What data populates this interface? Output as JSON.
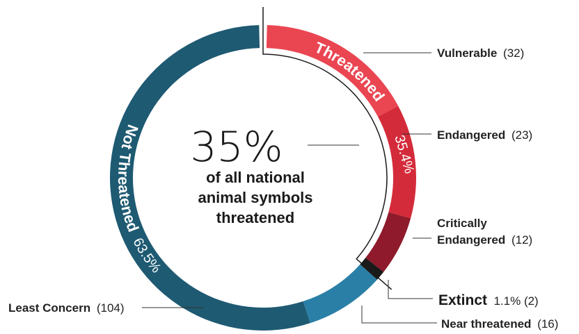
{
  "chart_data": {
    "type": "pie",
    "variant": "donut",
    "headline": {
      "value": "35%",
      "lines": [
        "of all national",
        "animal symbols",
        "threatened"
      ]
    },
    "groups": [
      {
        "name": "Threatened",
        "percent_label": "35.4%",
        "members": [
          "Vulnerable",
          "Endangered",
          "Critically Endangered"
        ]
      },
      {
        "name": "Not Threatened",
        "percent_label": "63.5%",
        "members": [
          "Near threatened",
          "Least Concern"
        ]
      }
    ],
    "slices": [
      {
        "name": "Vulnerable",
        "value": 32,
        "color": "#ea4652"
      },
      {
        "name": "Endangered",
        "value": 23,
        "color": "#d42b3a"
      },
      {
        "name": "Critically Endangered",
        "value": 12,
        "color": "#8e1a2b"
      },
      {
        "name": "Extinct",
        "value": 2,
        "color": "#1a1a1a"
      },
      {
        "name": "Near threatened",
        "value": 16,
        "color": "#2a7fa6"
      },
      {
        "name": "Least Concern",
        "value": 104,
        "color": "#1e5a72"
      }
    ],
    "labels": {
      "vulnerable": {
        "name": "Vulnerable",
        "count": "(32)"
      },
      "endangered": {
        "name": "Endangered",
        "count": "(23)"
      },
      "critically": {
        "name1": "Critically",
        "name2": "Endangered",
        "count": "(12)"
      },
      "extinct": {
        "name": "Extinct",
        "extra": "1.1% (2)"
      },
      "near": {
        "name": "Near threatened",
        "count": "(16)"
      },
      "least": {
        "name": "Least Concern",
        "count": "(104)"
      }
    }
  }
}
